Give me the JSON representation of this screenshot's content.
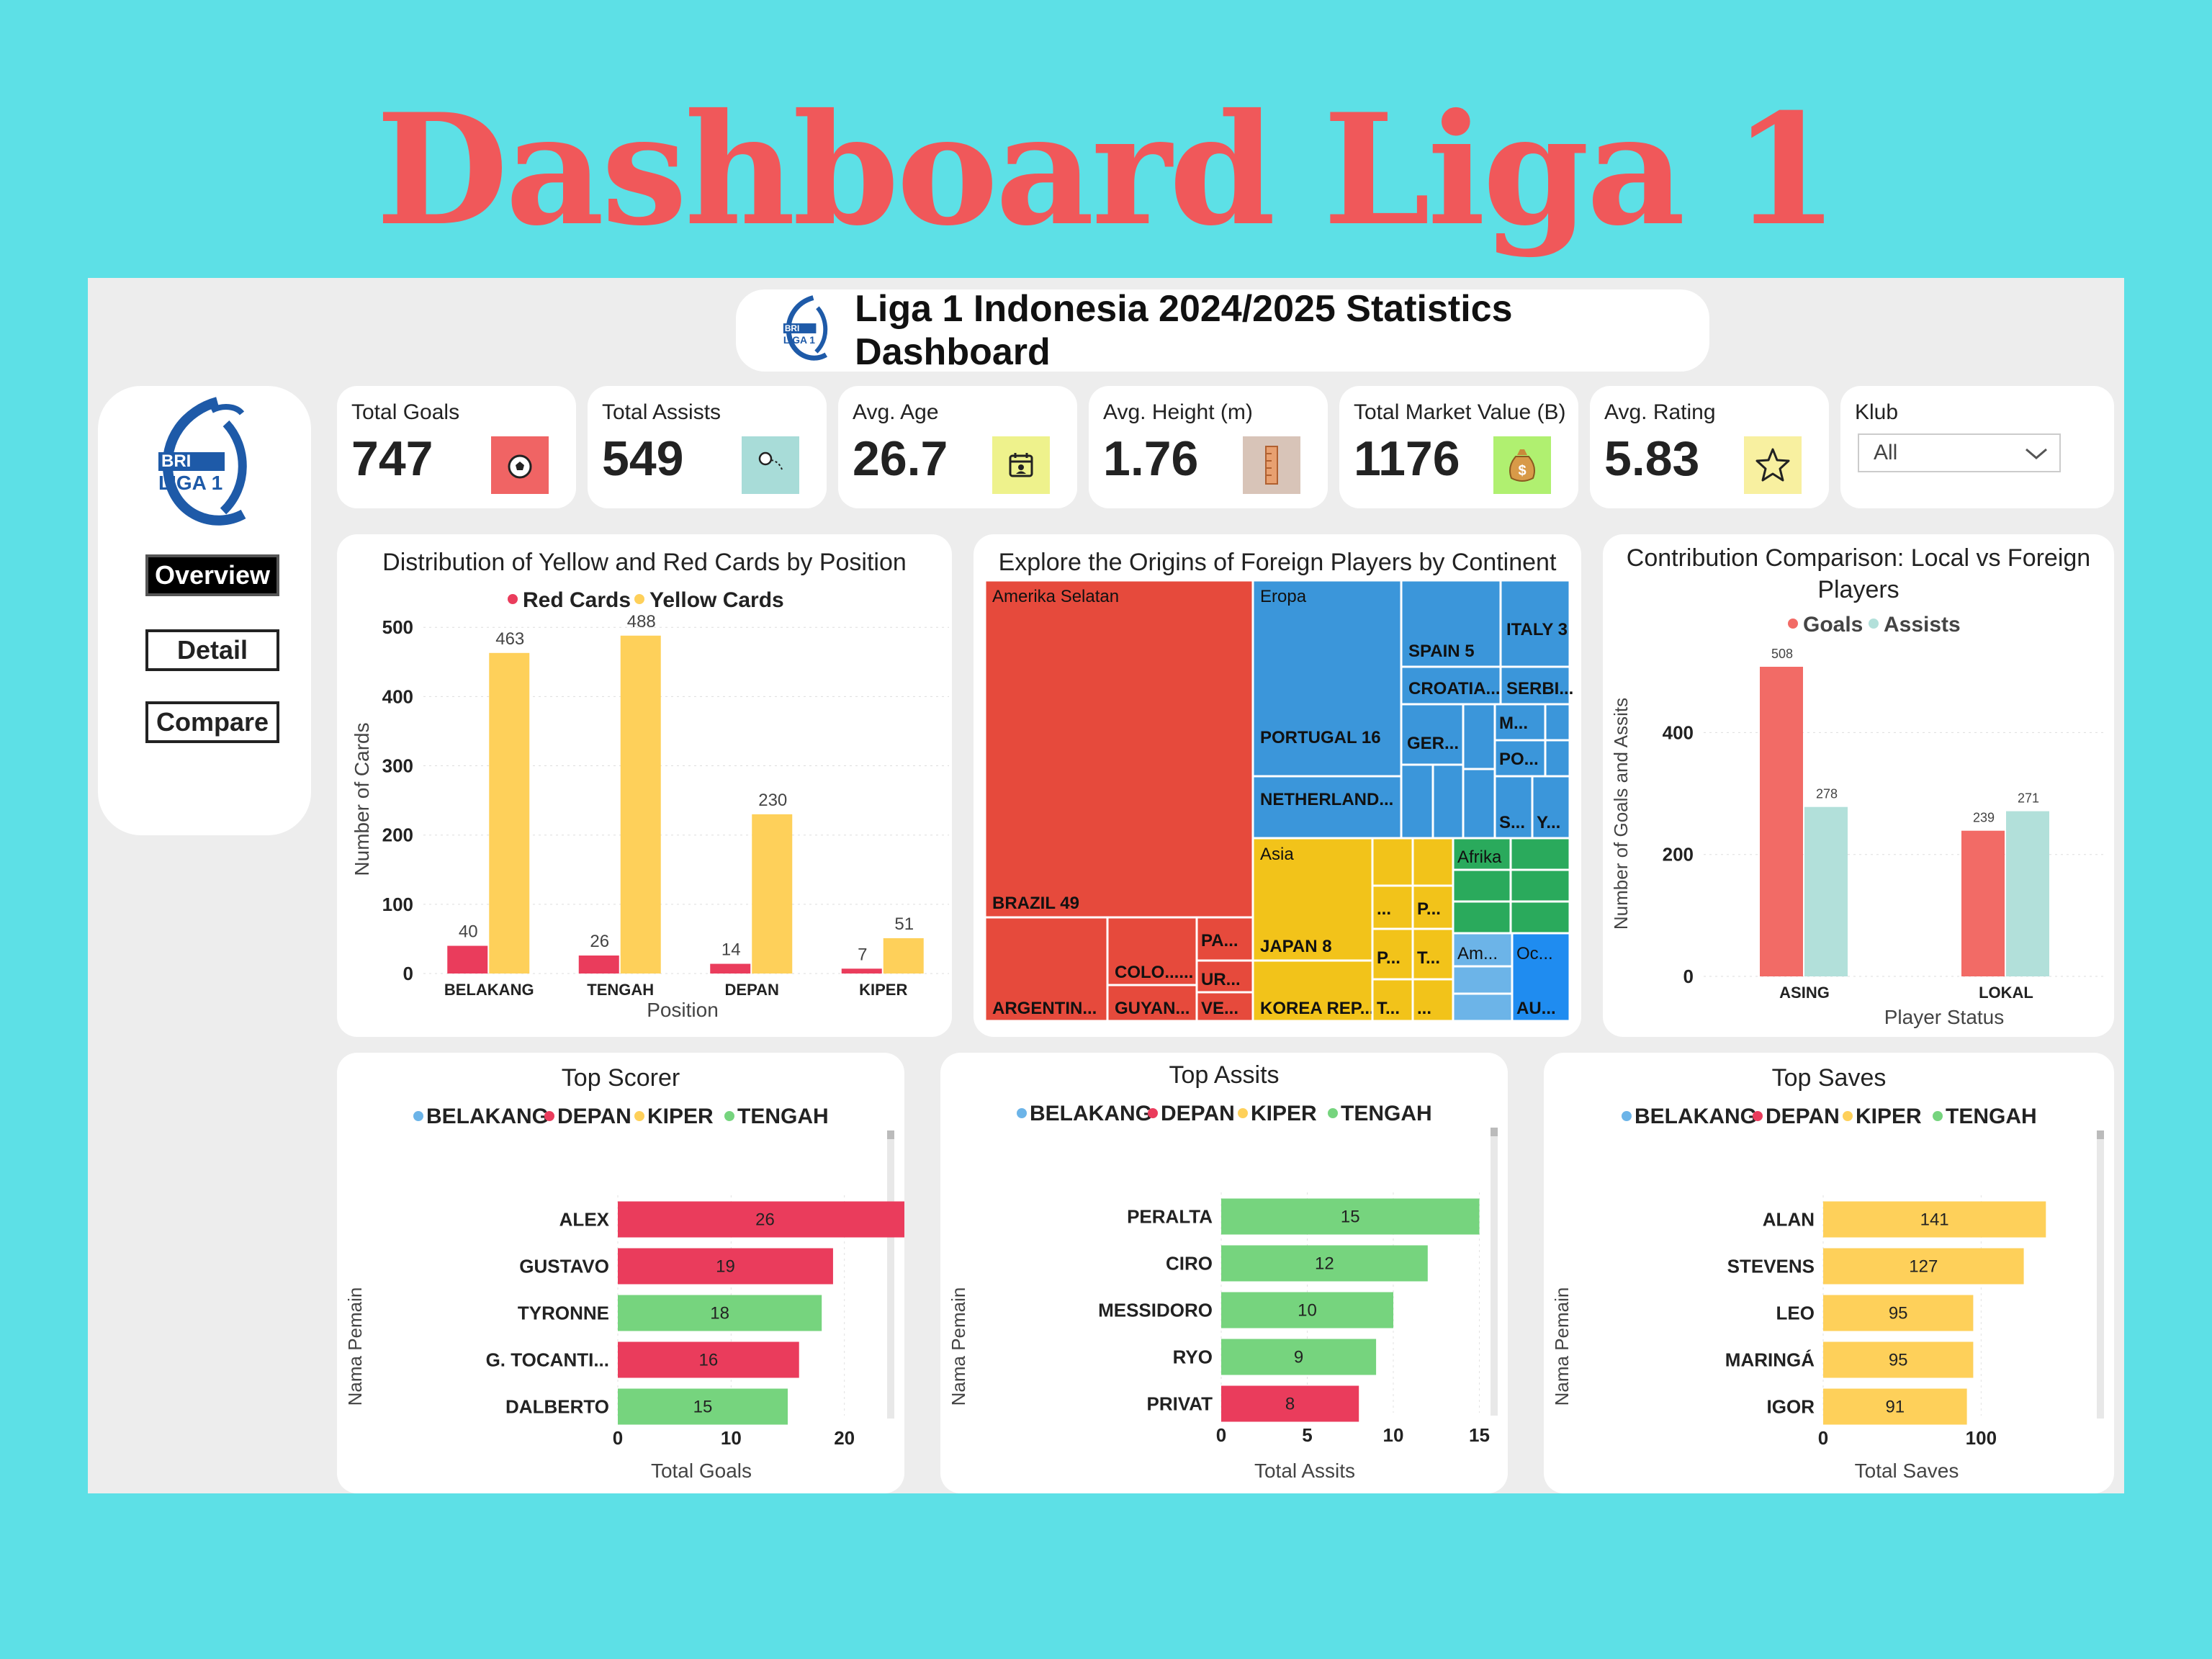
{
  "page_title": "Dashboard Liga 1",
  "header": {
    "title": "Liga 1 Indonesia 2024/2025 Statistics Dashboard"
  },
  "logo_text": [
    "BRI",
    "LIGA 1"
  ],
  "nav": [
    {
      "label": "Overview",
      "active": true
    },
    {
      "label": "Detail",
      "active": false
    },
    {
      "label": "Compare",
      "active": false
    }
  ],
  "kpis": [
    {
      "label": "Total Goals",
      "value": "747",
      "icon": "soccer-ball-icon",
      "color": "#f06464"
    },
    {
      "label": "Total Assists",
      "value": "549",
      "icon": "assist-icon",
      "color": "#a8dcd8"
    },
    {
      "label": "Avg. Age",
      "value": "26.7",
      "icon": "calendar-icon",
      "color": "#eef28c"
    },
    {
      "label": "Avg. Height (m)",
      "value": "1.76",
      "icon": "ruler-icon",
      "color": "#d8c4b8"
    },
    {
      "label": "Total Market Value (B)",
      "value": "1176",
      "icon": "money-bag-icon",
      "color": "#b0f070"
    },
    {
      "label": "Avg. Rating",
      "value": "5.83",
      "icon": "star-icon",
      "color": "#f8f0a0"
    }
  ],
  "filter": {
    "label": "Klub",
    "value": "All"
  },
  "colors": {
    "red": "#ea3c5c",
    "yellow": "#fed05a",
    "green": "#76d47e",
    "blue": "#6cb4e8",
    "coral": "#f26b66",
    "teal": "#b2e0da"
  },
  "chart_data": [
    {
      "id": "cards",
      "type": "bar",
      "title": "Distribution of Yellow and Red Cards by Position",
      "categories": [
        "BELAKANG",
        "TENGAH",
        "DEPAN",
        "KIPER"
      ],
      "series": [
        {
          "name": "Red Cards",
          "values": [
            40,
            26,
            14,
            7
          ],
          "color": "#ea3c5c"
        },
        {
          "name": "Yellow Cards",
          "values": [
            463,
            488,
            230,
            51
          ],
          "color": "#fed05a"
        }
      ],
      "xlabel": "Position",
      "ylabel": "Number of Cards",
      "yticks": [
        "0",
        "100",
        "200",
        "300",
        "400",
        "500"
      ],
      "ylim": [
        0,
        520
      ],
      "legend": "top"
    },
    {
      "id": "origins",
      "type": "treemap",
      "title": "Explore the Origins of Foreign Players by Continent",
      "groups": [
        {
          "name": "Amerika Selatan",
          "color": "#e64a3c",
          "items": [
            "BRAZIL 49",
            "ARGENTIN...",
            "COLO......",
            "GUYAN...",
            "PA...",
            "UR...",
            "VE..."
          ]
        },
        {
          "name": "Eropa",
          "color": "#3b96da",
          "items": [
            "PORTUGAL 16",
            "NETHERLAND...",
            "SPAIN 5",
            "ITALY 3",
            "CROATIA...",
            "SERBI...",
            "GER...",
            "M...",
            "PO...",
            "S...",
            "Y..."
          ]
        },
        {
          "name": "Asia",
          "color": "#f2c31a",
          "items": [
            "JAPAN 8",
            "KOREA REP...",
            "...",
            "P...",
            "P...",
            "T...",
            "T...",
            "..."
          ]
        },
        {
          "name": "Afrika",
          "color": "#2aaa5c",
          "items": []
        },
        {
          "name": "Am...",
          "color": "#6cb4e8",
          "items": []
        },
        {
          "name": "Oc...",
          "color": "#1f8cf0",
          "items": [
            "AU..."
          ]
        }
      ]
    },
    {
      "id": "contribution",
      "type": "bar",
      "title": "Contribution Comparison: Local vs Foreign Players",
      "categories": [
        "ASING",
        "LOKAL"
      ],
      "series": [
        {
          "name": "Goals",
          "values": [
            508,
            239
          ],
          "color": "#f26b66"
        },
        {
          "name": "Assists",
          "values": [
            278,
            271
          ],
          "color": "#b2e0da"
        }
      ],
      "xlabel": "Player Status",
      "ylabel": "Number of Goals and Assits",
      "yticks": [
        "0",
        "200",
        "400"
      ],
      "ylim": [
        0,
        560
      ],
      "legend": "top"
    },
    {
      "id": "scorer",
      "type": "bar",
      "orientation": "horizontal",
      "title": "Top Scorer",
      "legend_items": [
        "BELAKANG",
        "DEPAN",
        "KIPER",
        "TENGAH"
      ],
      "categories": [
        "ALEX",
        "GUSTAVO",
        "TYRONNE",
        "G. TOCANTI...",
        "DALBERTO"
      ],
      "values": [
        26,
        19,
        18,
        16,
        15
      ],
      "positions": [
        "DEPAN",
        "DEPAN",
        "TENGAH",
        "DEPAN",
        "TENGAH"
      ],
      "xlabel": "Total Goals",
      "ylabel": "Nama Pemain",
      "xticks": [
        "0",
        "10",
        "20",
        "30"
      ],
      "xlim": [
        0,
        30
      ]
    },
    {
      "id": "assists",
      "type": "bar",
      "orientation": "horizontal",
      "title": "Top Assits",
      "legend_items": [
        "BELAKANG",
        "DEPAN",
        "KIPER",
        "TENGAH"
      ],
      "categories": [
        "PERALTA",
        "CIRO",
        "MESSIDORO",
        "RYO",
        "PRIVAT"
      ],
      "values": [
        15,
        12,
        10,
        9,
        8
      ],
      "positions": [
        "TENGAH",
        "TENGAH",
        "TENGAH",
        "TENGAH",
        "DEPAN"
      ],
      "xlabel": "Total Assits",
      "ylabel": "Nama Pemain",
      "xticks": [
        "0",
        "5",
        "10",
        "15",
        "20"
      ],
      "xlim": [
        0,
        20
      ]
    },
    {
      "id": "saves",
      "type": "bar",
      "orientation": "horizontal",
      "title": "Top Saves",
      "legend_items": [
        "BELAKANG",
        "DEPAN",
        "KIPER",
        "TENGAH"
      ],
      "categories": [
        "ALAN",
        "STEVENS",
        "LEO",
        "MARINGÁ",
        "IGOR"
      ],
      "values": [
        141,
        127,
        95,
        95,
        91
      ],
      "positions": [
        "KIPER",
        "KIPER",
        "KIPER",
        "KIPER",
        "KIPER"
      ],
      "xlabel": "Total Saves",
      "ylabel": "Nama Pemain",
      "xticks": [
        "0",
        "100"
      ],
      "xlim": [
        0,
        155
      ]
    }
  ]
}
